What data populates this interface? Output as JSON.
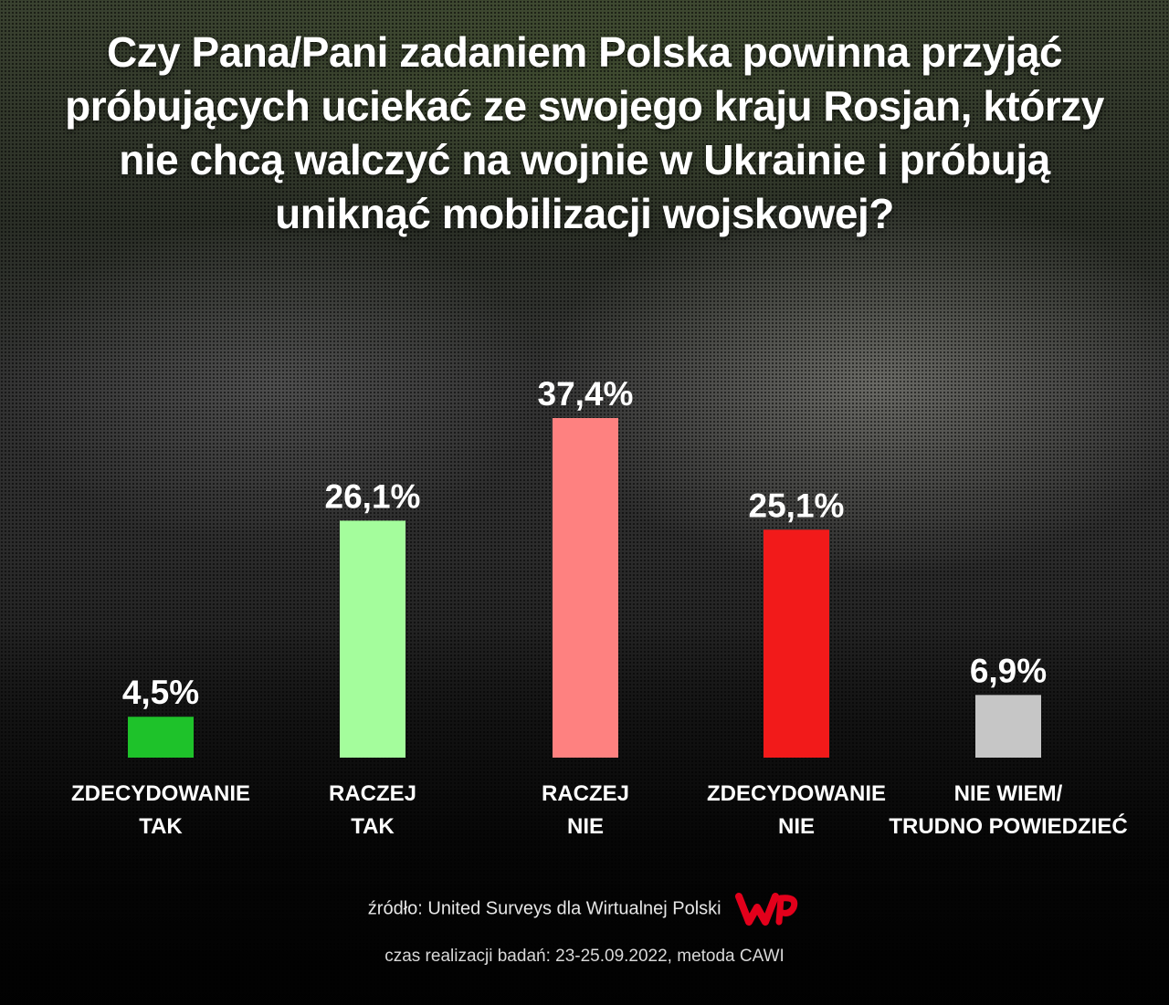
{
  "title": "Czy Pana/Pani zadaniem Polska powinna przyjąć próbujących uciekać ze swojego kraju Rosjan, którzy nie chcą walczyć na wojnie w Ukrainie i próbują uniknąć mobilizacji wojskowej?",
  "chart_data": {
    "type": "bar",
    "title": "Czy Pana/Pani zadaniem Polska powinna przyjąć próbujących uciekać ze swojego kraju Rosjan, którzy nie chcą walczyć na wojnie w Ukrainie i próbują uniknąć mobilizacji wojskowej?",
    "categories": [
      [
        "ZDECYDOWANIE",
        "TAK"
      ],
      [
        "RACZEJ",
        "TAK"
      ],
      [
        "RACZEJ",
        "NIE"
      ],
      [
        "ZDECYDOWANIE",
        "NIE"
      ],
      [
        "NIE WIEM/",
        "TRUDNO POWIEDZIEĆ"
      ]
    ],
    "values": [
      4.5,
      26.1,
      37.4,
      25.1,
      6.9
    ],
    "value_labels": [
      "4,5%",
      "26,1%",
      "37,4%",
      "25,1%",
      "6,9%"
    ],
    "colors": [
      "#1ec22a",
      "#a4fd9c",
      "#fe8180",
      "#f21a1a",
      "#c6c6c6"
    ],
    "unit": "%",
    "ylim": [
      0,
      37.4
    ],
    "grid": false,
    "legend": "none"
  },
  "footer": {
    "source": "źródło: United Surveys dla Wirtualnej Polski",
    "logo_name": "wp-logo",
    "timing": "czas realizacji badań: 23-25.09.2022, metoda CAWI"
  }
}
